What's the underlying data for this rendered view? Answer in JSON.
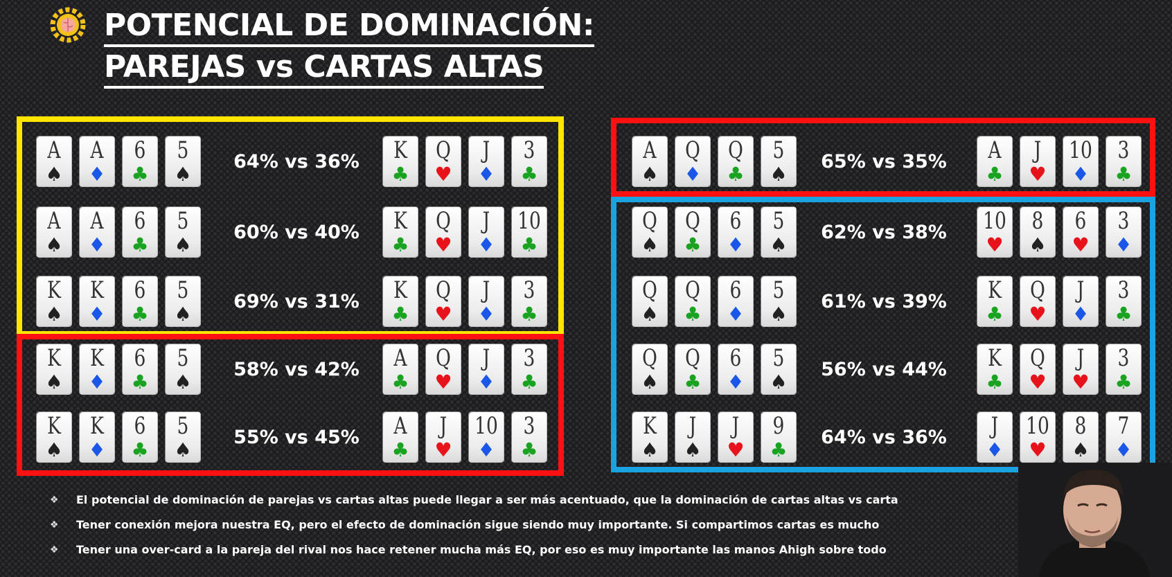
{
  "title_line1": "POTENCIAL DE DOMINACIÓN:",
  "title_line2": "PAREJAS vs CARTAS ALTAS",
  "colors": {
    "yellow_box": "#ffe600",
    "red_box": "#ff1111",
    "blue_box": "#1aa3e0",
    "spade": "#222222",
    "club": "#1aa321",
    "heart": "#e8121b",
    "diamond": "#1a57e8"
  },
  "left_rows": [
    {
      "hero": [
        [
          "A",
          "spade"
        ],
        [
          "A",
          "diamond"
        ],
        [
          "6",
          "club"
        ],
        [
          "5",
          "spade"
        ]
      ],
      "result": "64% vs 36%",
      "villain": [
        [
          "K",
          "club"
        ],
        [
          "Q",
          "heart"
        ],
        [
          "J",
          "diamond"
        ],
        [
          "3",
          "club"
        ]
      ]
    },
    {
      "hero": [
        [
          "A",
          "spade"
        ],
        [
          "A",
          "diamond"
        ],
        [
          "6",
          "club"
        ],
        [
          "5",
          "spade"
        ]
      ],
      "result": "60% vs 40%",
      "villain": [
        [
          "K",
          "club"
        ],
        [
          "Q",
          "heart"
        ],
        [
          "J",
          "diamond"
        ],
        [
          "10",
          "club"
        ]
      ]
    },
    {
      "hero": [
        [
          "K",
          "spade"
        ],
        [
          "K",
          "diamond"
        ],
        [
          "6",
          "club"
        ],
        [
          "5",
          "spade"
        ]
      ],
      "result": "69% vs 31%",
      "villain": [
        [
          "K",
          "club"
        ],
        [
          "Q",
          "heart"
        ],
        [
          "J",
          "diamond"
        ],
        [
          "3",
          "club"
        ]
      ]
    },
    {
      "hero": [
        [
          "K",
          "spade"
        ],
        [
          "K",
          "diamond"
        ],
        [
          "6",
          "club"
        ],
        [
          "5",
          "spade"
        ]
      ],
      "result": "58% vs 42%",
      "villain": [
        [
          "A",
          "club"
        ],
        [
          "Q",
          "heart"
        ],
        [
          "J",
          "diamond"
        ],
        [
          "3",
          "club"
        ]
      ]
    },
    {
      "hero": [
        [
          "K",
          "spade"
        ],
        [
          "K",
          "diamond"
        ],
        [
          "6",
          "club"
        ],
        [
          "5",
          "spade"
        ]
      ],
      "result": "55% vs 45%",
      "villain": [
        [
          "A",
          "club"
        ],
        [
          "J",
          "heart"
        ],
        [
          "10",
          "diamond"
        ],
        [
          "3",
          "club"
        ]
      ]
    }
  ],
  "right_rows": [
    {
      "hero": [
        [
          "A",
          "spade"
        ],
        [
          "Q",
          "diamond"
        ],
        [
          "Q",
          "club"
        ],
        [
          "5",
          "spade"
        ]
      ],
      "result": "65% vs 35%",
      "villain": [
        [
          "A",
          "club"
        ],
        [
          "J",
          "heart"
        ],
        [
          "10",
          "diamond"
        ],
        [
          "3",
          "club"
        ]
      ]
    },
    {
      "hero": [
        [
          "Q",
          "spade"
        ],
        [
          "Q",
          "club"
        ],
        [
          "6",
          "diamond"
        ],
        [
          "5",
          "spade"
        ]
      ],
      "result": "62% vs 38%",
      "villain": [
        [
          "10",
          "heart"
        ],
        [
          "8",
          "spade"
        ],
        [
          "6",
          "heart"
        ],
        [
          "3",
          "diamond"
        ]
      ]
    },
    {
      "hero": [
        [
          "Q",
          "spade"
        ],
        [
          "Q",
          "club"
        ],
        [
          "6",
          "diamond"
        ],
        [
          "5",
          "spade"
        ]
      ],
      "result": "61% vs 39%",
      "villain": [
        [
          "K",
          "club"
        ],
        [
          "Q",
          "heart"
        ],
        [
          "J",
          "diamond"
        ],
        [
          "3",
          "club"
        ]
      ]
    },
    {
      "hero": [
        [
          "Q",
          "spade"
        ],
        [
          "Q",
          "club"
        ],
        [
          "6",
          "diamond"
        ],
        [
          "5",
          "spade"
        ]
      ],
      "result": "56% vs 44%",
      "villain": [
        [
          "K",
          "club"
        ],
        [
          "Q",
          "heart"
        ],
        [
          "J",
          "heart"
        ],
        [
          "3",
          "club"
        ]
      ]
    },
    {
      "hero": [
        [
          "K",
          "spade"
        ],
        [
          "J",
          "spade"
        ],
        [
          "J",
          "heart"
        ],
        [
          "9",
          "club"
        ]
      ],
      "result": "64% vs 36%",
      "villain": [
        [
          "J",
          "diamond"
        ],
        [
          "10",
          "heart"
        ],
        [
          "8",
          "spade"
        ],
        [
          "7",
          "diamond"
        ]
      ]
    }
  ],
  "bullets": [
    "El potencial de dominación de parejas vs cartas altas puede llegar a ser más acentuado, que la dominación de cartas altas vs carta",
    "Tener conexión mejora nuestra EQ, pero el efecto de dominación sigue siendo muy importante. Si compartimos cartas es mucho",
    "Tener una over-card a la pareja del rival nos hace retener mucha más EQ, por eso es muy importante las manos Ahigh sobre todo"
  ]
}
